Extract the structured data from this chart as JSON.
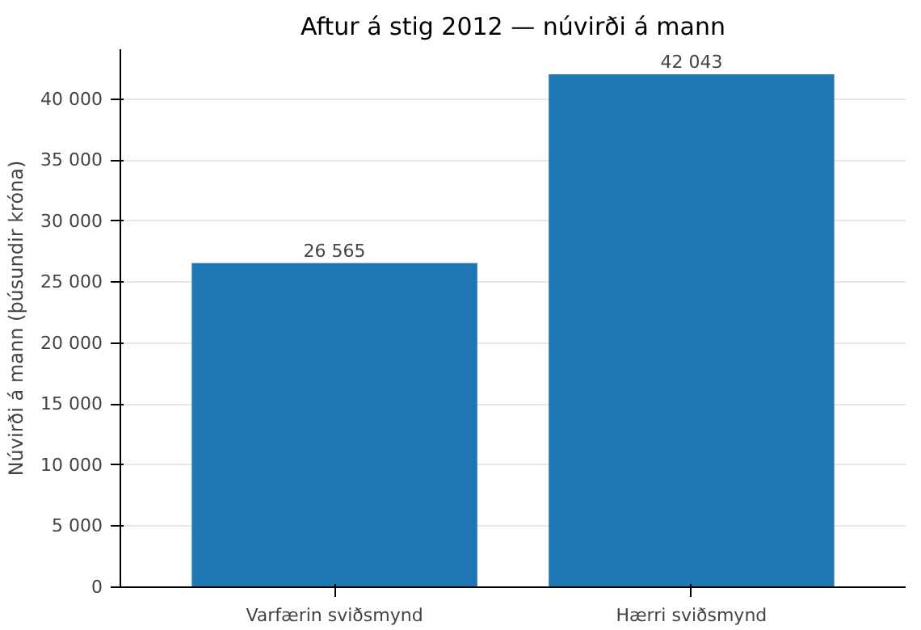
{
  "chart_data": {
    "type": "bar",
    "title": "Aftur á stig 2012 — núvirði á mann",
    "ylabel": "Núvirði á mann (þúsundir króna)",
    "categories": [
      "Varfærin sviðsmynd",
      "Hærri sviðsmynd"
    ],
    "values": [
      26565,
      42043
    ],
    "color": "#1f77b4",
    "value_labels": [
      "26 565",
      "42 043"
    ],
    "ylim": [
      0,
      44100
    ],
    "yticks": [
      0,
      {
        "value": 5000,
        "label": "5 000"
      },
      {
        "value": 10000,
        "label": "10 000"
      },
      {
        "value": 15000,
        "label": "15 000"
      },
      {
        "value": 20000,
        "label": "20 000"
      },
      {
        "value": 25000,
        "label": "25 000"
      },
      {
        "value": 30000,
        "label": "30 000"
      },
      {
        "value": 35000,
        "label": "35 000"
      },
      {
        "value": 40000,
        "label": "40 000"
      }
    ],
    "grid": "y"
  }
}
